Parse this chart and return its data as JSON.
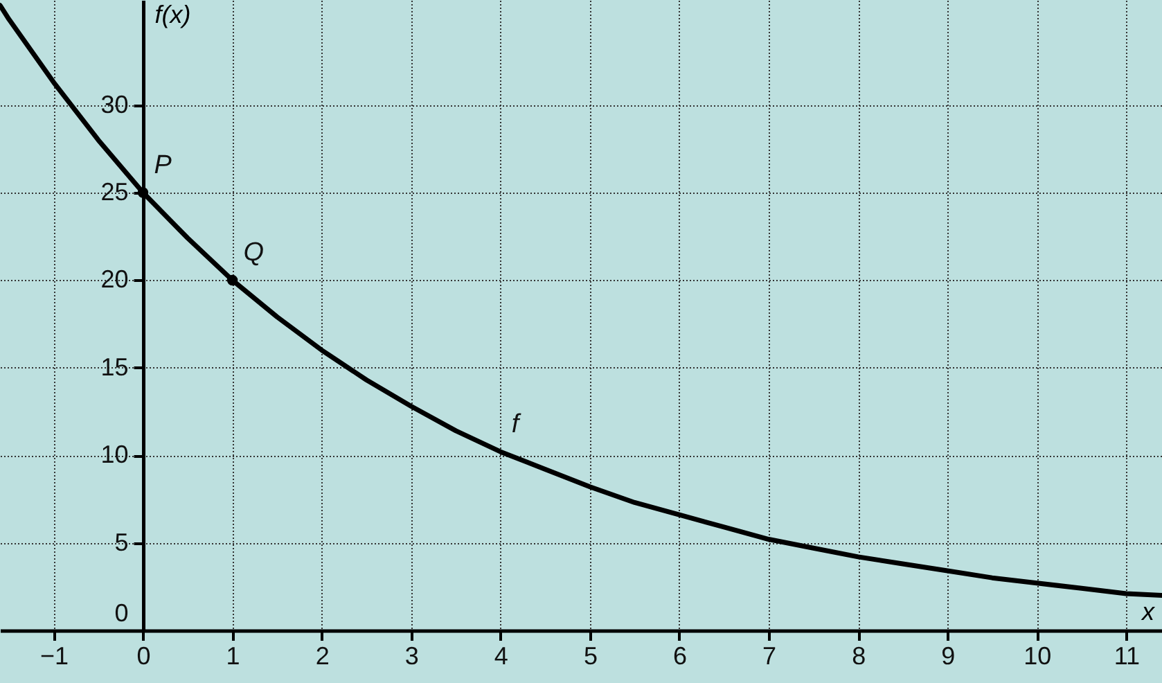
{
  "chart_data": {
    "type": "line",
    "xlabel": "x",
    "ylabel": "f(x)",
    "xlim": [
      -1.6,
      11.4
    ],
    "ylim": [
      0,
      36
    ],
    "xticks": [
      -1,
      0,
      1,
      2,
      3,
      4,
      5,
      6,
      7,
      8,
      9,
      10,
      11
    ],
    "yticks": [
      0,
      5,
      10,
      15,
      20,
      25,
      30
    ],
    "grid": true,
    "line_style": "solid",
    "series": [
      {
        "color": "#000000",
        "x": [
          -1.6,
          -1.5,
          -1,
          -0.5,
          0,
          0.5,
          1,
          1.5,
          2,
          2.5,
          3,
          3.5,
          4,
          4.5,
          5,
          5.5,
          6,
          6.5,
          7,
          7.5,
          8,
          8.5,
          9,
          9.5,
          10,
          10.5,
          11,
          11.4
        ],
        "values": [
          35.7,
          34.9,
          31.3,
          28.0,
          25,
          22.4,
          20,
          17.9,
          16,
          14.3,
          12.8,
          11.4,
          10.2,
          9.2,
          8.2,
          7.3,
          6.6,
          5.9,
          5.2,
          4.7,
          4.2,
          3.8,
          3.4,
          3.0,
          2.7,
          2.4,
          2.1,
          2.0
        ]
      },
      {
        "type": "scatter",
        "color": "#000000",
        "marker": "circle",
        "x": [
          0,
          1
        ],
        "values": [
          25,
          20
        ]
      }
    ],
    "annotations": [
      {
        "text": "P",
        "x": 0,
        "y": 25
      },
      {
        "text": "Q",
        "x": 1,
        "y": 20
      },
      {
        "text": "f",
        "x": 4,
        "y": 10.2
      }
    ]
  }
}
